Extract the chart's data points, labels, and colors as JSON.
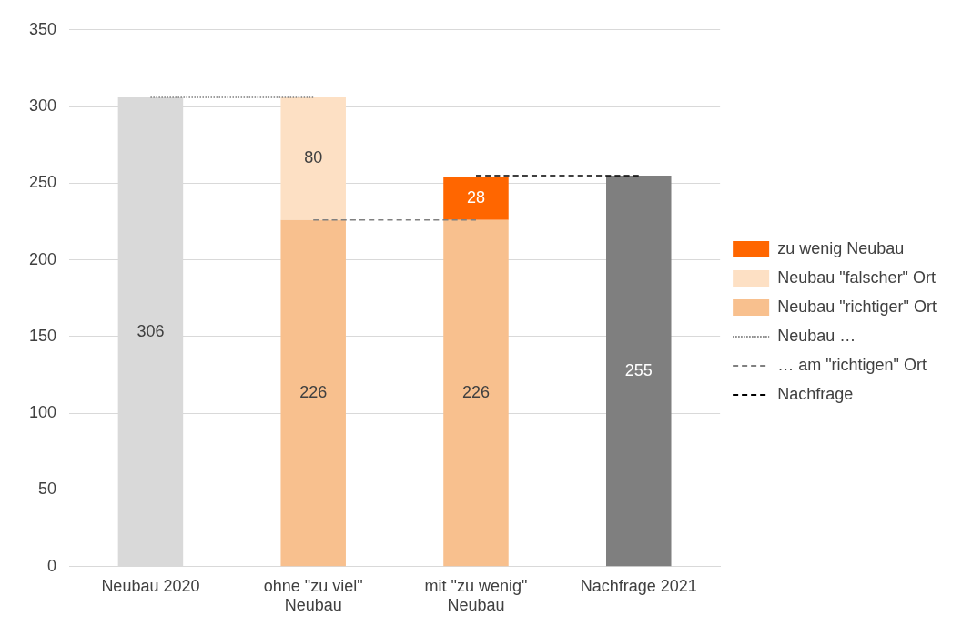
{
  "chart_data": {
    "type": "bar",
    "stacked": true,
    "categories": [
      "Neubau 2020",
      "ohne \"zu viel\" Neubau",
      "mit \"zu wenig\" Neubau",
      "Nachfrage 2021"
    ],
    "series": [
      {
        "colors": [
          "#d9d9d9",
          null,
          null,
          "#7f7f7f"
        ],
        "values": [
          306,
          null,
          null,
          255
        ],
        "value_labels": [
          "306",
          null,
          null,
          "255"
        ]
      },
      {
        "name": "Neubau \"richtiger\" Ort",
        "color": "#f8c08e",
        "values": [
          null,
          226,
          226,
          null
        ],
        "value_labels": [
          null,
          "226",
          "226",
          null
        ]
      },
      {
        "name": "Neubau \"falscher\" Ort",
        "color": "#fde0c4",
        "values": [
          null,
          80,
          null,
          null
        ],
        "value_labels": [
          null,
          "80",
          null,
          null
        ]
      },
      {
        "name": "zu wenig Neubau",
        "color": "#ff6600",
        "values": [
          null,
          null,
          28,
          null
        ],
        "value_labels": [
          null,
          null,
          "28",
          null
        ]
      },
      {
        "name": "Neubau …",
        "type": "line",
        "color": "#7f7f7f",
        "line_style": "dotted",
        "values": [
          306,
          306,
          null,
          null
        ]
      },
      {
        "name": "… am \"richtigen\" Ort",
        "type": "line",
        "color": "#808080",
        "line_style": "dashed",
        "values": [
          null,
          226,
          226,
          null
        ]
      },
      {
        "name": "Nachfrage",
        "type": "line",
        "color": "#000000",
        "line_style": "dashed",
        "values": [
          null,
          null,
          255,
          255
        ]
      }
    ],
    "ylim": [
      0,
      350
    ],
    "yticks": [
      0,
      50,
      100,
      150,
      200,
      250,
      300,
      350
    ],
    "grid": "y",
    "legend": "right",
    "marker": "none"
  }
}
